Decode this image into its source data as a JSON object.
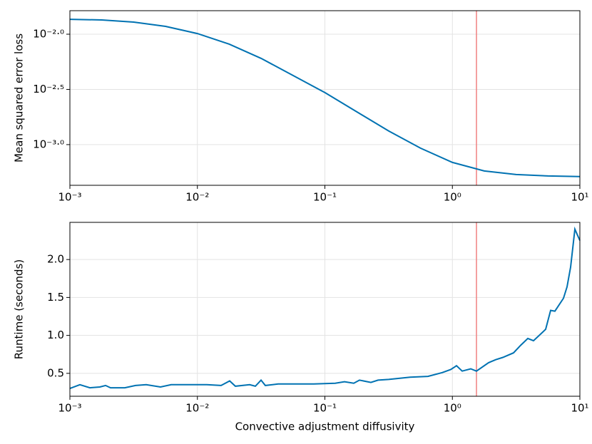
{
  "chart_data": [
    {
      "type": "line",
      "xscale": "log",
      "yscale": "log",
      "grid": true,
      "color": "#0072b2",
      "ylabel": "Mean squared error loss",
      "x": [
        0.001,
        0.001778,
        0.003162,
        0.005623,
        0.01,
        0.01778,
        0.03162,
        0.05623,
        0.1,
        0.1778,
        0.3162,
        0.5623,
        1,
        1.778,
        3.162,
        5.623,
        10
      ],
      "values": [
        0.01365,
        0.01346,
        0.01288,
        0.01178,
        0.01014,
        0.00813,
        0.00604,
        0.00423,
        0.00296,
        0.00198,
        0.00133,
        0.000929,
        0.00069,
        0.000577,
        0.000536,
        0.00052,
        0.000513
      ],
      "xlim": [
        0.001,
        10
      ],
      "ylim": [
        0.000428,
        0.01633
      ],
      "xticks": [
        {
          "value": 0.001,
          "label": "10⁻³"
        },
        {
          "value": 0.01,
          "label": "10⁻²"
        },
        {
          "value": 0.1,
          "label": "10⁻¹"
        },
        {
          "value": 1,
          "label": "10⁰"
        },
        {
          "value": 10,
          "label": "10¹"
        }
      ],
      "yticks": [
        {
          "value": 0.01,
          "label": "10⁻²·⁰"
        },
        {
          "value": 0.003162,
          "label": "10⁻²·⁵"
        },
        {
          "value": 0.001,
          "label": "10⁻³·⁰"
        }
      ],
      "vline": 1.545,
      "vline_color": "#f08080"
    },
    {
      "type": "line",
      "xscale": "log",
      "yscale": "linear",
      "grid": true,
      "color": "#0072b2",
      "ylabel": "Runtime (seconds)",
      "xlabel": "Convective adjustment diffusivity",
      "x": [
        0.001,
        0.001197,
        0.001434,
        0.001718,
        0.001905,
        0.002084,
        0.002697,
        0.003271,
        0.003969,
        0.005135,
        0.006229,
        0.008271,
        0.01186,
        0.01535,
        0.01791,
        0.01986,
        0.0257,
        0.02849,
        0.03158,
        0.03412,
        0.04301,
        0.06329,
        0.0819,
        0.1205,
        0.1425,
        0.1685,
        0.1868,
        0.2296,
        0.2611,
        0.3167,
        0.4661,
        0.6432,
        0.8324,
        0.9714,
        1.077,
        1.194,
        1.394,
        1.545,
        1.923,
        2.187,
        2.488,
        3.018,
        3.434,
        3.906,
        4.329,
        5.388,
        5.897,
        6.372,
        7.434,
        7.929,
        8.46,
        9.138,
        10
      ],
      "values": [
        0.3,
        0.35,
        0.31,
        0.32,
        0.34,
        0.31,
        0.31,
        0.34,
        0.35,
        0.32,
        0.35,
        0.35,
        0.35,
        0.34,
        0.4,
        0.33,
        0.35,
        0.33,
        0.41,
        0.34,
        0.36,
        0.36,
        0.36,
        0.37,
        0.39,
        0.37,
        0.41,
        0.38,
        0.41,
        0.42,
        0.45,
        0.46,
        0.51,
        0.55,
        0.6,
        0.53,
        0.56,
        0.53,
        0.64,
        0.68,
        0.71,
        0.77,
        0.87,
        0.96,
        0.93,
        1.08,
        1.33,
        1.32,
        1.49,
        1.64,
        1.9,
        2.4,
        2.25
      ],
      "xlim": [
        0.001,
        10
      ],
      "ylim": [
        0.198,
        2.49
      ],
      "xticks": [
        {
          "value": 0.001,
          "label": "10⁻³"
        },
        {
          "value": 0.01,
          "label": "10⁻²"
        },
        {
          "value": 0.1,
          "label": "10⁻¹"
        },
        {
          "value": 1,
          "label": "10⁰"
        },
        {
          "value": 10,
          "label": "10¹"
        }
      ],
      "yticks": [
        0.5,
        {
          "value": 1,
          "label": "1.0"
        },
        1.5,
        {
          "value": 2,
          "label": "2.0"
        }
      ],
      "vline": 1.545,
      "vline_color": "#f08080"
    }
  ]
}
